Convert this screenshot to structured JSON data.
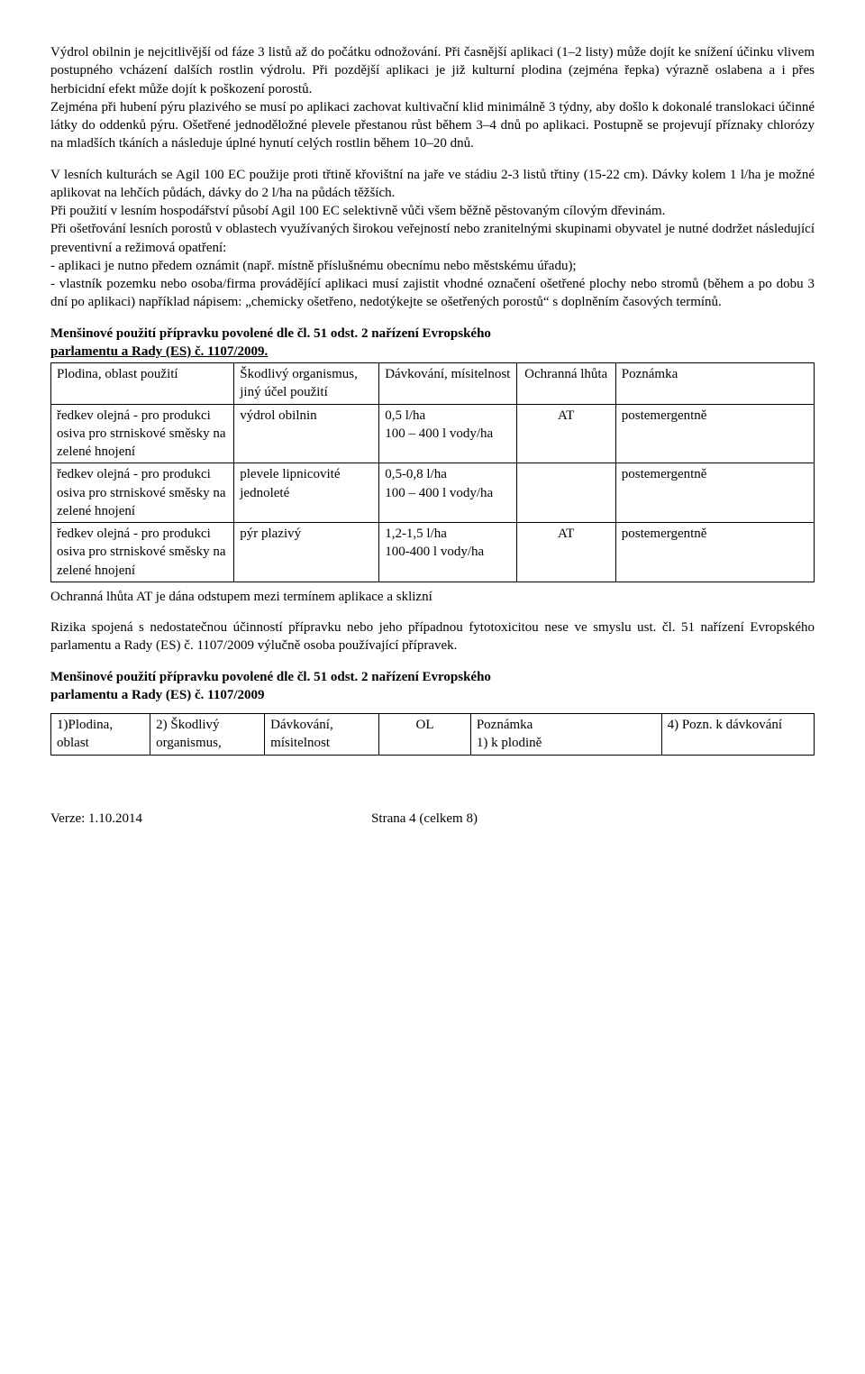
{
  "para1": "Výdrol obilnin je nejcitlivější od fáze 3 listů až do počátku odnožování. Při časnější aplikaci (1–2 listy) může dojít ke snížení účinku vlivem postupného vcházení dalších rostlin výdrolu. Při pozdější aplikaci je již kulturní plodina (zejména řepka) výrazně oslabena a i přes herbicidní efekt může dojít k poškození porostů.",
  "para2": "Zejména při hubení pýru plazivého se musí po aplikaci zachovat kultivační klid minimálně 3 týdny, aby došlo k dokonalé translokaci účinné látky do oddenků pýru. Ošetřené jednoděložné plevele přestanou růst během 3–4 dnů po aplikaci. Postupně se projevují příznaky chlorózy na mladších tkáních a následuje úplné hynutí celých rostlin během 10–20 dnů.",
  "para3a": "V lesních kulturách se Agil 100 EC použije proti třtině křovištní na jaře ve stádiu 2-3 listů třtiny (15-22 cm). Dávky kolem 1 l/ha je možné aplikovat na lehčích půdách, dávky do 2 l/ha na půdách těžších.",
  "para3b": "Při použití v lesním hospodářství působí Agil 100 EC selektivně vůči všem běžně pěstovaným cílovým dřevinám.",
  "para3c": "Při ošetřování lesních porostů v oblastech využívaných širokou veřejností nebo zranitelnými skupinami obyvatel je nutné dodržet následující preventivní a režimová opatření:",
  "para3d": "- aplikaci je nutno předem oznámit (např. místně příslušnému obecnímu nebo městskému úřadu);",
  "para3e": "- vlastník pozemku nebo osoba/firma provádějící aplikaci musí zajistit vhodné označení ošetřené plochy nebo stromů (během a po dobu 3 dní po aplikaci) například nápisem: „chemicky ošetřeno, nedotýkejte se ošetřených porostů“ s doplněním časových termínů.",
  "heading1a": "Menšinové použití přípravku povolené dle čl. 51 odst. 2 nařízení Evropského",
  "heading1b": "parlamentu a Rady (ES) č. 1107/2009.",
  "table1": {
    "headers": [
      "Plodina, oblast použití",
      "Škodlivý organismus, jiný účel použití",
      "Dávkování, mísitelnost",
      "Ochranná lhůta",
      "Poznámka"
    ],
    "rows": [
      [
        "ředkev olejná - pro produkci osiva pro strniskové směsky na zelené hnojení",
        "výdrol obilnin",
        "0,5 l/ha\n100 – 400 l vody/ha",
        "AT",
        "postemergentně"
      ],
      [
        "ředkev olejná - pro produkci osiva pro strniskové směsky na zelené hnojení",
        "plevele lipnicovité jednoleté",
        "0,5-0,8 l/ha\n100 – 400 l vody/ha",
        "",
        "postemergentně"
      ],
      [
        "ředkev olejná - pro produkci osiva pro strniskové směsky na zelené hnojení",
        "pýr plazivý",
        "1,2-1,5 l/ha\n100-400 l vody/ha",
        "AT",
        "postemergentně"
      ]
    ]
  },
  "table1_note": "Ochranná lhůta AT je dána odstupem mezi termínem aplikace a sklizní",
  "para4": "Rizika spojená s nedostatečnou účinností přípravku nebo jeho případnou fytotoxicitou nese ve smyslu ust. čl. 51 nařízení Evropského parlamentu a Rady (ES) č. 1107/2009 výlučně osoba používající přípravek.",
  "heading2a": "Menšinové použití přípravku povolené dle čl. 51 odst. 2 nařízení Evropského",
  "heading2b": "parlamentu a Rady (ES) č. 1107/2009",
  "table2": {
    "headers": [
      "1)Plodina, oblast",
      "2) Škodlivý organismus,",
      "Dávkování, mísitelnost",
      "OL",
      "Poznámka\n1) k plodině",
      "4) Pozn. k dávkování"
    ]
  },
  "footer": {
    "left": "Verze: 1.10.2014",
    "center": "Strana 4 (celkem 8)"
  }
}
